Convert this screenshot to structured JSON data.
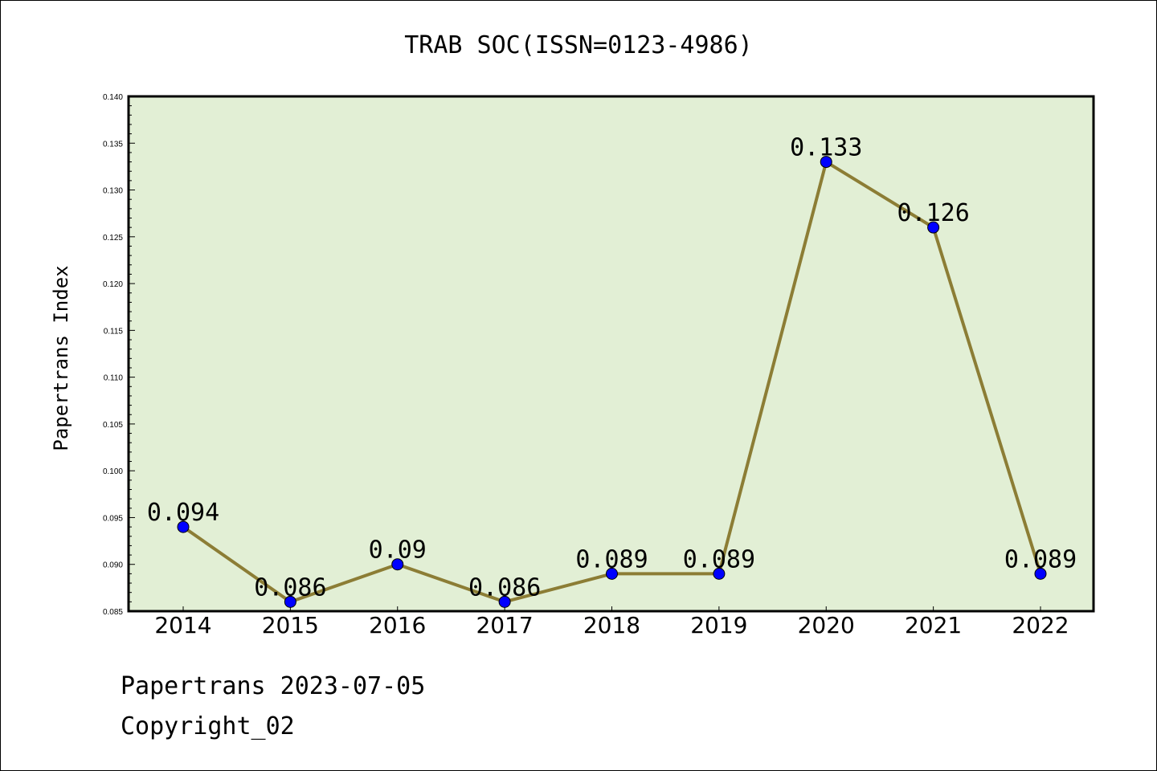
{
  "chart_data": {
    "type": "line",
    "title": "TRAB SOC(ISSN=0123-4986)",
    "xlabel": "",
    "ylabel": "Papertrans Index",
    "categories": [
      "2014",
      "2015",
      "2016",
      "2017",
      "2018",
      "2019",
      "2020",
      "2021",
      "2022"
    ],
    "values": [
      0.094,
      0.086,
      0.09,
      0.086,
      0.089,
      0.089,
      0.133,
      0.126,
      0.089
    ],
    "data_labels": [
      "0.094",
      "0.086",
      "0.09",
      "0.086",
      "0.089",
      "0.089",
      "0.133",
      "0.126",
      "0.089"
    ],
    "ylim": [
      0.085,
      0.14
    ],
    "yticks": [
      "0.085",
      "0.090",
      "0.095",
      "0.100",
      "0.105",
      "0.110",
      "0.115",
      "0.120",
      "0.125",
      "0.130",
      "0.135",
      "0.140"
    ],
    "grid": false,
    "colors": {
      "plot_background": "#e2efd5",
      "line": "#8c7d35",
      "marker": "#0000ff"
    }
  },
  "footer": {
    "line1": "Papertrans 2023-07-05",
    "line2": "Copyright_02"
  }
}
